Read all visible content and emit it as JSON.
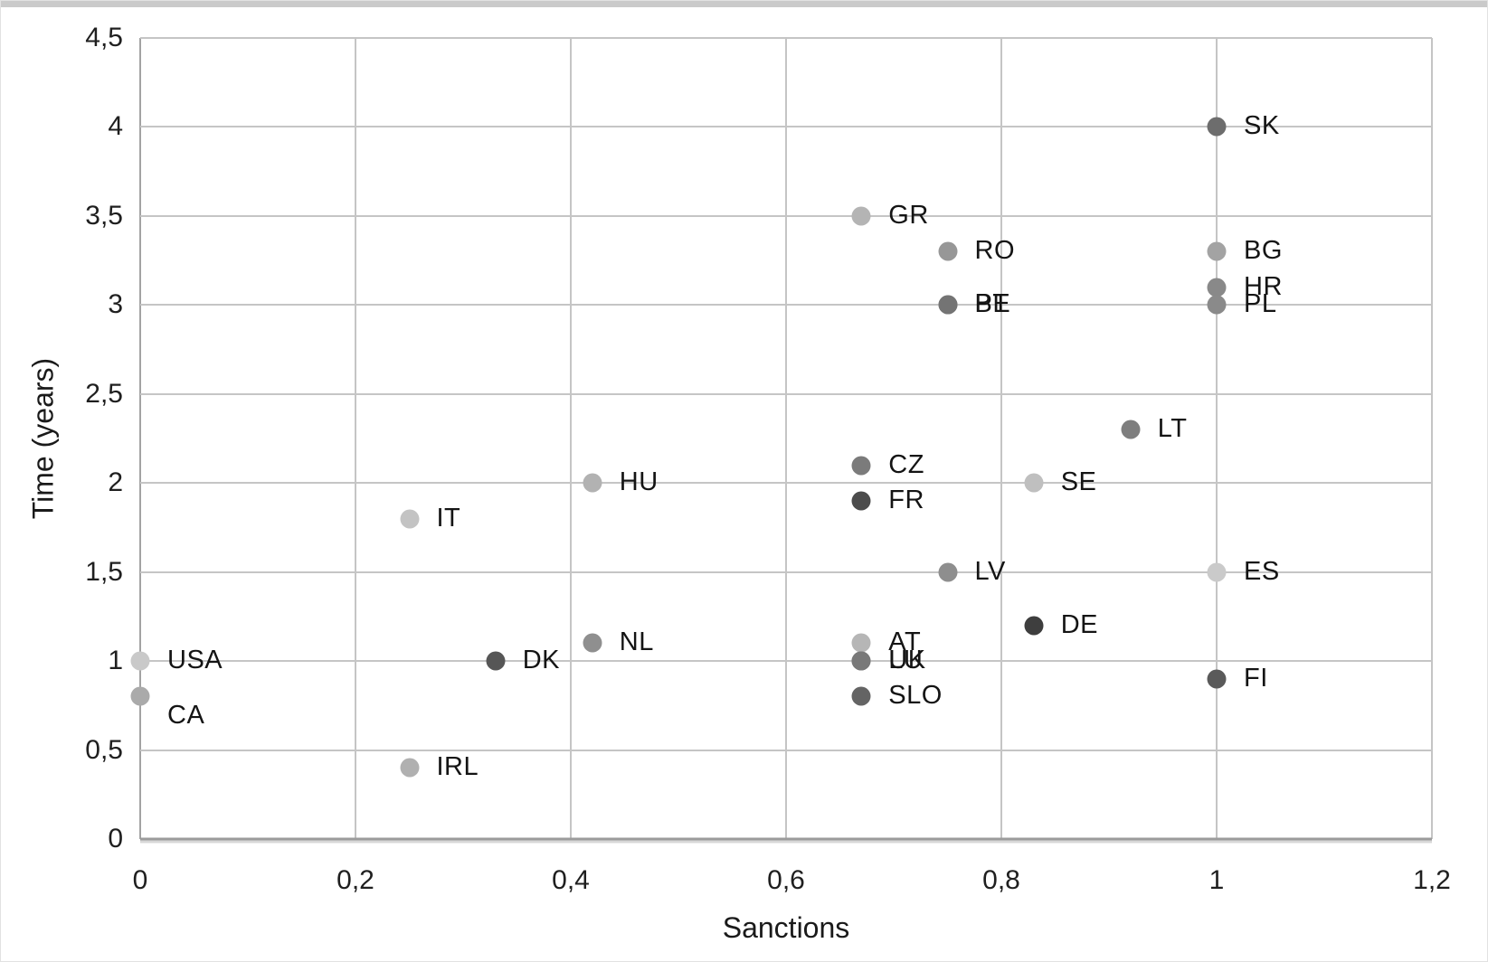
{
  "chart_data": {
    "type": "scatter",
    "title": "",
    "xlabel": "Sanctions",
    "ylabel": "Time (years)",
    "xlim": [
      0,
      1.2
    ],
    "ylim": [
      0,
      4.5
    ],
    "grid": true,
    "legend": "none",
    "decimal_separator": ",",
    "xticks": {
      "values": [
        0,
        0.2,
        0.4,
        0.6,
        0.8,
        1,
        1.2
      ],
      "labels": [
        "0",
        "0,2",
        "0,4",
        "0,6",
        "0,8",
        "1",
        "1,2"
      ]
    },
    "yticks": {
      "values": [
        0,
        0.5,
        1,
        1.5,
        2,
        2.5,
        3,
        3.5,
        4,
        4.5
      ],
      "labels": [
        "0",
        "0,5",
        "1",
        "1,5",
        "2",
        "2,5",
        "3",
        "3,5",
        "4",
        "4,5"
      ]
    },
    "points": [
      {
        "label": "SK",
        "x": 1.0,
        "y": 4.0,
        "color": "#6d6d6d"
      },
      {
        "label": "GR",
        "x": 0.67,
        "y": 3.5,
        "color": "#b4b4b4"
      },
      {
        "label": "RO",
        "x": 0.75,
        "y": 3.3,
        "color": "#979797"
      },
      {
        "label": "BG",
        "x": 1.0,
        "y": 3.3,
        "color": "#a3a3a3"
      },
      {
        "label": "HR",
        "x": 1.0,
        "y": 3.1,
        "color": "#898989"
      },
      {
        "label": "BE",
        "x": 0.75,
        "y": 3.0,
        "color": "#747474"
      },
      {
        "label": "PT",
        "x": 0.75,
        "y": 3.0,
        "color": "#747474"
      },
      {
        "label": "PL",
        "x": 1.0,
        "y": 3.0,
        "color": "#8a8a8a"
      },
      {
        "label": "LT",
        "x": 0.92,
        "y": 2.3,
        "color": "#7e7e7e"
      },
      {
        "label": "CZ",
        "x": 0.67,
        "y": 2.1,
        "color": "#7b7b7b"
      },
      {
        "label": "HU",
        "x": 0.42,
        "y": 2.0,
        "color": "#b2b2b2"
      },
      {
        "label": "SE",
        "x": 0.83,
        "y": 2.0,
        "color": "#bfbfbf"
      },
      {
        "label": "FR",
        "x": 0.67,
        "y": 1.9,
        "color": "#4c4c4c"
      },
      {
        "label": "IT",
        "x": 0.25,
        "y": 1.8,
        "color": "#c3c3c3"
      },
      {
        "label": "LV",
        "x": 0.75,
        "y": 1.5,
        "color": "#8e8e8e"
      },
      {
        "label": "ES",
        "x": 1.0,
        "y": 1.5,
        "color": "#cacaca"
      },
      {
        "label": "DE",
        "x": 0.83,
        "y": 1.2,
        "color": "#3e3e3e"
      },
      {
        "label": "NL",
        "x": 0.42,
        "y": 1.1,
        "color": "#8f8f8f"
      },
      {
        "label": "AT",
        "x": 0.67,
        "y": 1.1,
        "color": "#b6b6b6"
      },
      {
        "label": "USA",
        "x": 0.0,
        "y": 1.0,
        "color": "#c9c9c9"
      },
      {
        "label": "DK",
        "x": 0.33,
        "y": 1.0,
        "color": "#565656"
      },
      {
        "label": "UK",
        "x": 0.67,
        "y": 1.0,
        "color": "#797979"
      },
      {
        "label": "LU",
        "x": 0.67,
        "y": 1.0,
        "color": "#797979"
      },
      {
        "label": "SLO",
        "x": 0.67,
        "y": 0.8,
        "color": "#646464"
      },
      {
        "label": "FI",
        "x": 1.0,
        "y": 0.9,
        "color": "#5a5a5a"
      },
      {
        "label": "CA",
        "x": 0.0,
        "y": 0.8,
        "color": "#aaaaaa",
        "label_dy": 22
      },
      {
        "label": "IRL",
        "x": 0.25,
        "y": 0.4,
        "color": "#b0b0b0"
      }
    ]
  }
}
